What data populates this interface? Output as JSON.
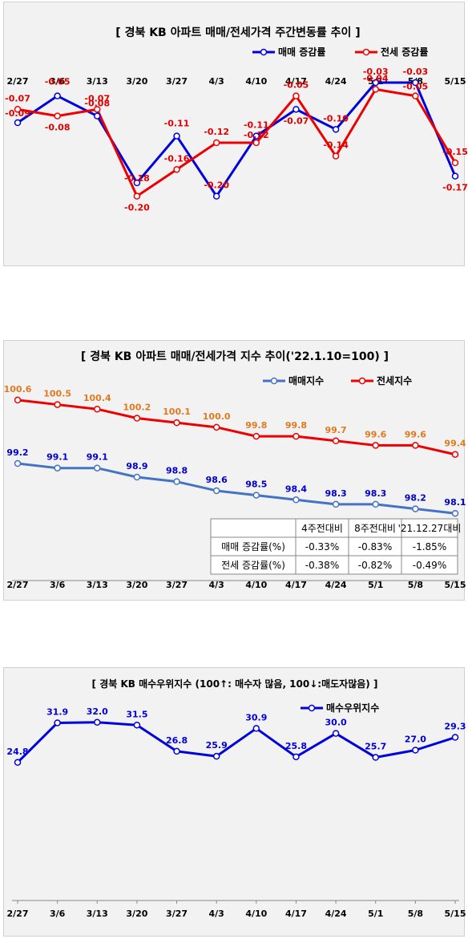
{
  "chart_data": [
    {
      "type": "line",
      "title": "[ 경북  KB 아파트 매매/전세가격 주간변동률 추이 ]",
      "categories": [
        "2/27",
        "3/6",
        "3/13",
        "3/20",
        "3/27",
        "4/3",
        "4/10",
        "4/17",
        "4/24",
        "5/1",
        "5/8",
        "5/15"
      ],
      "series": [
        {
          "name": "매매 증감률",
          "color": "#0000dd",
          "values": [
            -0.09,
            -0.05,
            -0.08,
            -0.18,
            -0.11,
            -0.2,
            -0.11,
            -0.07,
            -0.1,
            -0.03,
            -0.03,
            -0.17
          ],
          "labels": [
            "-0.09",
            "-0.05",
            "-0.08",
            "-0.18",
            "-0.11",
            "-0.20",
            "-0.11",
            "-0.07",
            "-0.10",
            "-0.03",
            "-0.03",
            "-0.17"
          ]
        },
        {
          "name": "전세 증감률",
          "color": "#ee0000",
          "values": [
            -0.07,
            -0.08,
            -0.07,
            -0.2,
            -0.16,
            -0.12,
            -0.12,
            -0.05,
            -0.14,
            -0.04,
            -0.05,
            -0.15
          ],
          "labels": [
            "-0.07",
            "-0.08",
            "-0.07",
            "-0.20",
            "-0.16",
            "-0.12",
            "-0.12",
            "-0.05",
            "-0.14",
            "-0.04",
            "-0.05",
            "-0.15"
          ]
        }
      ],
      "ylim": [
        -0.27,
        0.0
      ],
      "legend": "top-right",
      "grid": false
    },
    {
      "type": "line",
      "title": "[  경북  KB 아파트 매매/전세가격 지수 추이('22.1.10=100)  ]",
      "categories": [
        "2/27",
        "3/6",
        "3/13",
        "3/20",
        "3/27",
        "4/3",
        "4/10",
        "4/17",
        "4/24",
        "5/1",
        "5/8",
        "5/15"
      ],
      "series": [
        {
          "name": "매매지수",
          "color": "#4472c4",
          "label_color": "#0000cc",
          "values": [
            99.2,
            99.1,
            99.1,
            98.9,
            98.8,
            98.6,
            98.5,
            98.4,
            98.3,
            98.3,
            98.2,
            98.1
          ],
          "labels": [
            "99.2",
            "99.1",
            "99.1",
            "98.9",
            "98.8",
            "98.6",
            "98.5",
            "98.4",
            "98.3",
            "98.3",
            "98.2",
            "98.1"
          ]
        },
        {
          "name": "전세지수",
          "color": "#ee0000",
          "label_color": "#e07a20",
          "values": [
            100.6,
            100.5,
            100.4,
            100.2,
            100.1,
            100.0,
            99.8,
            99.8,
            99.7,
            99.6,
            99.6,
            99.4
          ],
          "labels": [
            "100.6",
            "100.5",
            "100.4",
            "100.2",
            "100.1",
            "100.0",
            "99.8",
            "99.8",
            "99.7",
            "99.6",
            "99.6",
            "99.4"
          ]
        }
      ],
      "ylim": [
        96.6,
        101.2
      ],
      "legend": "top-right",
      "grid": false,
      "table": {
        "headers": [
          "",
          "4주전대비",
          "8주전대비",
          "'21.12.27대비"
        ],
        "rows": [
          [
            "매매 증감률(%)",
            "-0.33%",
            "-0.83%",
            "-1.85%"
          ],
          [
            "전세 증감률(%)",
            "-0.38%",
            "-0.82%",
            "-0.49%"
          ]
        ]
      }
    },
    {
      "type": "line",
      "title": "[  경북  KB 매수우위지수 (100↑: 매수자 많음, 100↓:매도자많음)  ]",
      "categories": [
        "2/27",
        "3/6",
        "3/13",
        "3/20",
        "3/27",
        "4/3",
        "4/10",
        "4/17",
        "4/24",
        "5/1",
        "5/8",
        "5/15"
      ],
      "series": [
        {
          "name": "매수우위지수",
          "color": "#0000dd",
          "values": [
            24.8,
            31.9,
            32.0,
            31.5,
            26.8,
            25.9,
            30.9,
            25.8,
            30.0,
            25.7,
            27.0,
            29.3
          ],
          "labels": [
            "24.8",
            "31.9",
            "32.0",
            "31.5",
            "26.8",
            "25.9",
            "30.9",
            "25.8",
            "30.0",
            "25.7",
            "27.0",
            "29.3"
          ]
        }
      ],
      "ylim": [
        0,
        36
      ],
      "legend": "top-right",
      "grid": false
    }
  ]
}
